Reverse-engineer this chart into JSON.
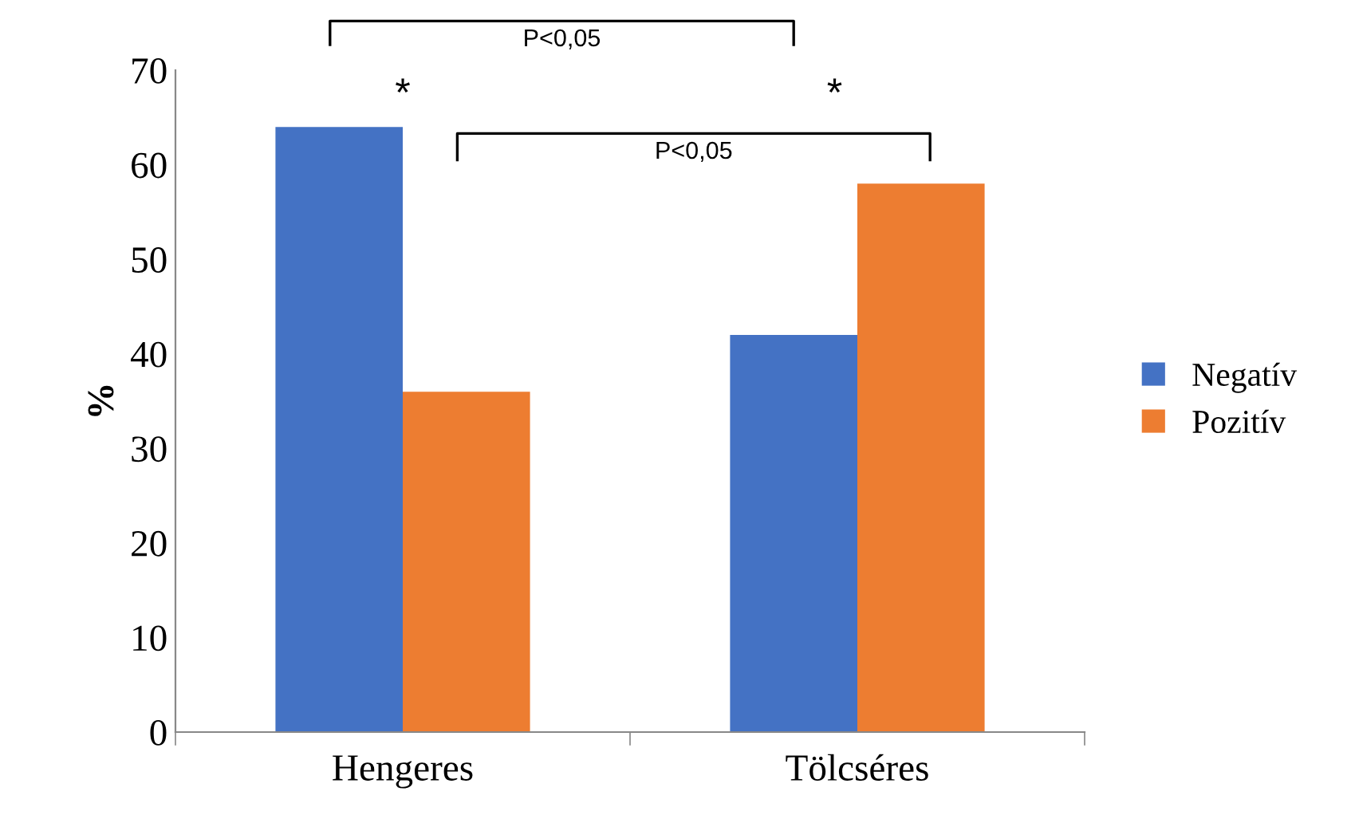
{
  "chart_data": {
    "type": "bar",
    "ylabel": "%",
    "categories": [
      "Hengeres",
      "Tölcséres"
    ],
    "series": [
      {
        "name": "Negatív",
        "color": "#4472c4",
        "values": [
          64,
          42
        ]
      },
      {
        "name": "Pozitív",
        "color": "#ed7d31",
        "values": [
          36,
          58
        ]
      }
    ],
    "ylim": [
      0,
      70
    ],
    "yticks": [
      0,
      10,
      20,
      30,
      40,
      50,
      60,
      70
    ],
    "grid": false,
    "legend": "right",
    "annotations": [
      "P<0,05",
      "P<0,05",
      "*",
      "*"
    ]
  }
}
